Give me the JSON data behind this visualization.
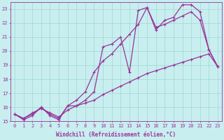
{
  "background_color": "#c8eef0",
  "plot_bg_color": "#c8eef0",
  "grid_color": "#a0d8d0",
  "line_color": "#993399",
  "markersize": 2.5,
  "linewidth": 0.9,
  "xlim": [
    -0.5,
    23.5
  ],
  "ylim": [
    15,
    23.5
  ],
  "yticks": [
    15,
    16,
    17,
    18,
    19,
    20,
    21,
    22,
    23
  ],
  "xticks": [
    0,
    1,
    2,
    3,
    4,
    5,
    6,
    7,
    8,
    9,
    10,
    11,
    12,
    13,
    14,
    15,
    16,
    17,
    18,
    19,
    20,
    21,
    22,
    23
  ],
  "xlabel": "Windchill (Refroidissement éolien,°C)",
  "xlabel_fontsize": 5.5,
  "tick_fontsize": 5.0,
  "series1": [
    15.5,
    15.1,
    15.4,
    16.0,
    15.4,
    15.1,
    16.1,
    16.1,
    16.5,
    17.1,
    20.3,
    20.5,
    21.0,
    18.5,
    22.9,
    23.1,
    21.5,
    22.2,
    22.4,
    23.3,
    23.3,
    22.8,
    20.1,
    18.9
  ],
  "series2": [
    15.5,
    15.2,
    15.5,
    16.0,
    15.5,
    15.2,
    16.1,
    16.5,
    17.1,
    18.5,
    19.3,
    19.8,
    20.5,
    21.2,
    21.9,
    23.1,
    21.7,
    21.9,
    22.2,
    22.5,
    22.8,
    22.2,
    20.1,
    18.9
  ],
  "series3": [
    15.5,
    15.2,
    15.6,
    15.9,
    15.6,
    15.3,
    15.8,
    16.1,
    16.3,
    16.5,
    16.9,
    17.2,
    17.5,
    17.8,
    18.1,
    18.4,
    18.6,
    18.8,
    19.0,
    19.2,
    19.4,
    19.6,
    19.8,
    18.9
  ]
}
